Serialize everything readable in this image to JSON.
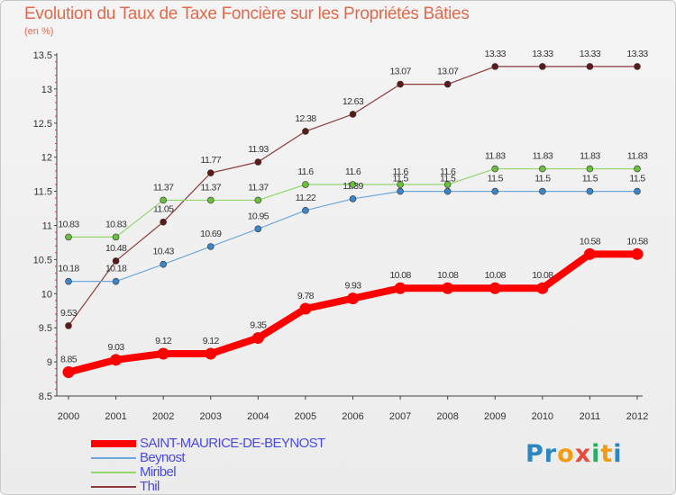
{
  "chart_data": {
    "type": "line",
    "title": "Evolution du Taux de Taxe Foncière sur les Propriétés Bâties",
    "unit_label": "(en %)",
    "x": [
      "2000",
      "2001",
      "2002",
      "2003",
      "2004",
      "2005",
      "2006",
      "2007",
      "2008",
      "2009",
      "2010",
      "2011",
      "2012"
    ],
    "ylim": [
      8.5,
      13.5
    ],
    "yticks": [
      "8.5",
      "9",
      "9.5",
      "10",
      "10.5",
      "11",
      "11.5",
      "12",
      "12.5",
      "13",
      "13.5"
    ],
    "grid": false,
    "legend_position": "bottom-left",
    "series": [
      {
        "name": "SAINT-MAURICE-DE-BEYNOST",
        "color": "#ff0000",
        "marker_color": "#ff0000",
        "width": 8,
        "values": [
          8.85,
          9.03,
          9.12,
          9.12,
          9.35,
          9.78,
          9.93,
          10.08,
          10.08,
          10.08,
          10.08,
          10.58,
          10.58
        ],
        "labels": [
          "8.85",
          "9.03",
          "9.12",
          "9.12",
          "9.35",
          "9.78",
          "9.93",
          "10.08",
          "10.08",
          "10.08",
          "10.08",
          "10.58",
          "10.58"
        ]
      },
      {
        "name": "Beynost",
        "color": "#6fa8dc",
        "marker_color": "#3d85c6",
        "width": 1.2,
        "values": [
          10.18,
          10.18,
          10.43,
          10.69,
          10.95,
          11.22,
          11.39,
          11.5,
          11.5,
          11.5,
          11.5,
          11.5,
          11.5
        ],
        "labels": [
          "10.18",
          "10.18",
          "10.43",
          "10.69",
          "10.95",
          "11.22",
          "11.39",
          "11.5",
          "11.5",
          "11.5",
          "11.5",
          "11.5",
          "11.5"
        ]
      },
      {
        "name": "Miribel",
        "color": "#93d66e",
        "marker_color": "#6abf3c",
        "width": 1.2,
        "values": [
          10.83,
          10.83,
          11.37,
          11.37,
          11.37,
          11.6,
          11.6,
          11.6,
          11.6,
          11.83,
          11.83,
          11.83,
          11.83
        ],
        "labels": [
          "10.83",
          "10.83",
          "11.37",
          "11.37",
          "11.37",
          "11.6",
          "11.6",
          "11.6",
          "11.6",
          "11.83",
          "11.83",
          "11.83",
          "11.83"
        ]
      },
      {
        "name": "Thil",
        "color": "#8b3a3a",
        "marker_color": "#5c1a1a",
        "width": 1.2,
        "values": [
          9.53,
          10.48,
          11.05,
          11.77,
          11.93,
          12.38,
          12.63,
          13.07,
          13.07,
          13.33,
          13.33,
          13.33,
          13.33
        ],
        "labels": [
          "9.53",
          "10.48",
          "11.05",
          "11.77",
          "11.93",
          "12.38",
          "12.63",
          "13.07",
          "13.07",
          "13.33",
          "13.33",
          "13.33",
          "13.33"
        ]
      }
    ]
  },
  "logo": {
    "letters": [
      "P",
      "r",
      "o",
      "x",
      "i",
      "t",
      "i"
    ],
    "colors": [
      "#2e86c1",
      "#2e86c1",
      "#f39c12",
      "#e74c3c",
      "#27ae60",
      "#f39c12",
      "#2e86c1"
    ]
  },
  "colors": {
    "title": "#e06a4c",
    "legend_text": "#4a4ae0",
    "axis": "#444444"
  }
}
